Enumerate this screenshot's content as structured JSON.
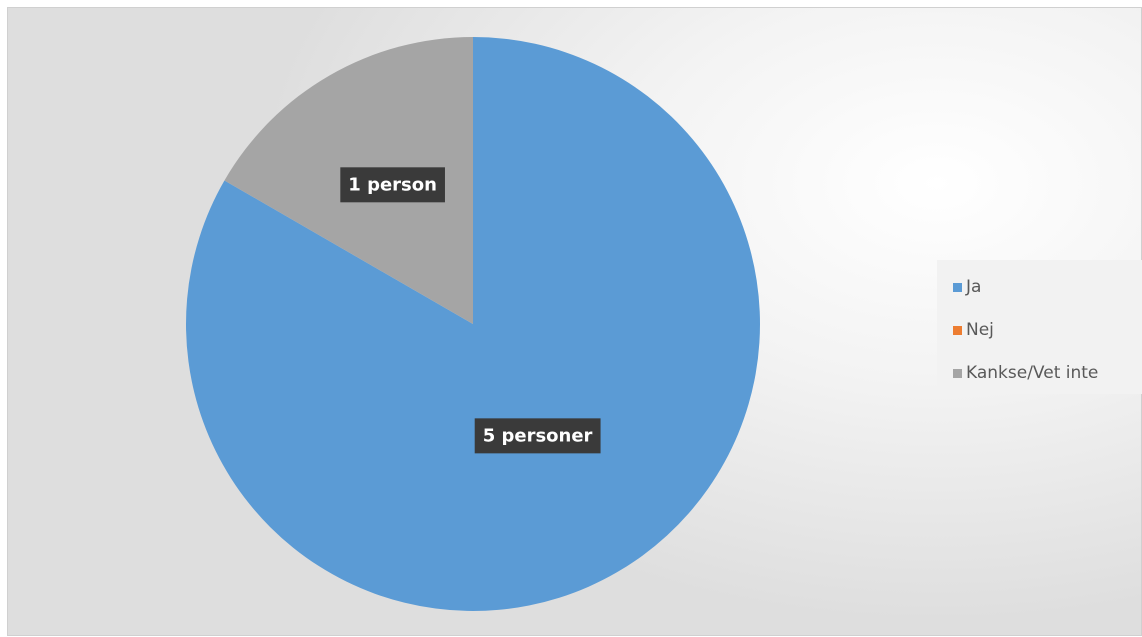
{
  "chart_data": {
    "type": "pie",
    "categories": [
      "Ja",
      "Nej",
      "Kankse/Vet inte"
    ],
    "values": [
      5,
      0,
      1
    ],
    "colors": [
      "#5b9bd5",
      "#ed7d31",
      "#a5a5a5"
    ],
    "data_labels": [
      "5 personer",
      "",
      "1 person"
    ],
    "legend_position": "right",
    "start_angle_deg": 0,
    "direction": "clockwise"
  }
}
